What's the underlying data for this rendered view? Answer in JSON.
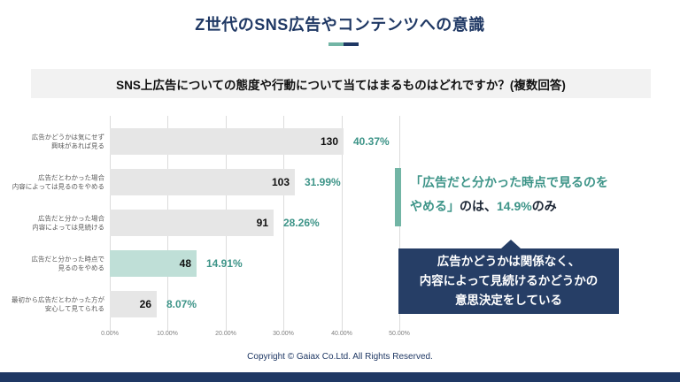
{
  "header": {
    "title": "Z世代のSNS広告やコンテンツへの意識",
    "question": "SNS上広告についての態度や行動について当てはまるものはどれですか？(複数回答)"
  },
  "colors": {
    "navy": "#1f3864",
    "callout_navy": "#263e66",
    "teal_text": "#3d9488",
    "teal_accent": "#72b5a5",
    "bar_gray": "#e6e6e6",
    "bar_highlight": "#bfdfd7",
    "question_bg": "#f2f2f2"
  },
  "chart_data": {
    "type": "bar",
    "orientation": "horizontal",
    "title": "",
    "xlabel": "",
    "ylabel": "",
    "grid": true,
    "x_axis": {
      "min": 0,
      "max": 50,
      "tick_labels": [
        "0.00%",
        "10.00%",
        "20.00%",
        "30.00%",
        "40.00%",
        "50.00%"
      ]
    },
    "highlight_index": 3,
    "categories": [
      "広告かどうかは気にせず興味があれば見る",
      "広告だとわかった場合内容によっては見るのをやめる",
      "広告だと分かった場合内容によっては見続ける",
      "広告だと分かった時点で見るのをやめる",
      "最初から広告だとわかった方が安心して見てられる"
    ],
    "rows": [
      {
        "label_line1": "広告かどうかは気にせず",
        "label_line2": "興味があれば見る",
        "count": "130",
        "percent": 40.37,
        "percent_label": "40.37%"
      },
      {
        "label_line1": "広告だとわかった場合",
        "label_line2": "内容によっては見るのをやめる",
        "count": "103",
        "percent": 31.99,
        "percent_label": "31.99%"
      },
      {
        "label_line1": "広告だと分かった場合",
        "label_line2": "内容によっては見続ける",
        "count": "91",
        "percent": 28.26,
        "percent_label": "28.26%"
      },
      {
        "label_line1": "広告だと分かった時点で",
        "label_line2": "見るのをやめる",
        "count": "48",
        "percent": 14.91,
        "percent_label": "14.91%"
      },
      {
        "label_line1": "最初から広告だとわかった方が",
        "label_line2": "安心して見てられる",
        "count": "26",
        "percent": 8.07,
        "percent_label": "8.07%"
      }
    ]
  },
  "annotations": {
    "callout1": {
      "line1": "「広告だと分かった時点で見るのを",
      "line2_part1": "やめる」",
      "line2_part2": "のは、",
      "line2_part3": "14.9%",
      "line2_part4": "のみ"
    },
    "callout2": {
      "line1": "広告かどうかは関係なく、",
      "line2": "内容によって見続けるかどうかの",
      "line3": "意思決定をしている"
    }
  },
  "footer": {
    "copyright": "Copyright © Gaiax Co.Ltd. All Rights Reserved."
  }
}
